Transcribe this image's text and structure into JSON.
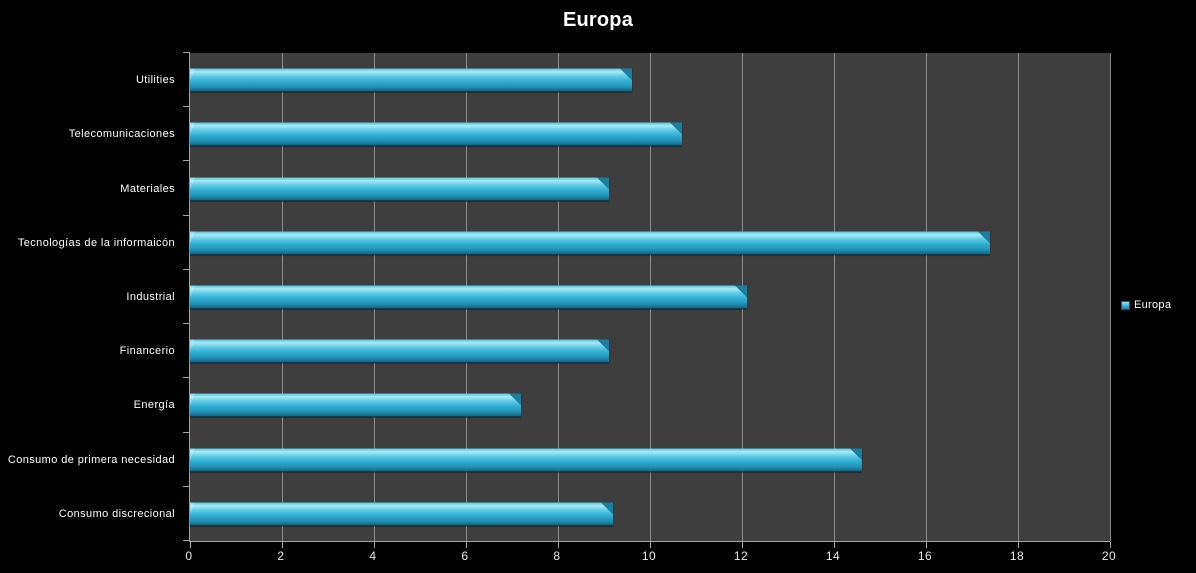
{
  "title": "Europa",
  "legend": {
    "label": "Europa",
    "position": "right"
  },
  "colors": {
    "background": "#000000",
    "plot_background": "#3e3e3e",
    "gridline": "#a3a3a3",
    "axis": "#a3a3a3",
    "text": "#ffffff",
    "bar_main": "#35b4d8",
    "bar_highlight": "#a9e9f5",
    "bar_shadow": "#0d5a75"
  },
  "chart_data": {
    "type": "bar",
    "orientation": "horizontal",
    "title": "Europa",
    "categories": [
      "Utilities",
      "Telecomunicaciones",
      "Materiales",
      "Tecnologías de la informaicón",
      "Industrial",
      "Financerio",
      "Energía",
      "Consumo de primera necesidad",
      "Consumo discrecional"
    ],
    "series": [
      {
        "name": "Europa",
        "values": [
          9.6,
          10.7,
          9.1,
          17.4,
          12.1,
          9.1,
          7.2,
          14.6,
          9.2
        ]
      }
    ],
    "xlabel": "",
    "ylabel": "",
    "xlim": [
      0,
      20
    ],
    "xticks": [
      0,
      2,
      4,
      6,
      8,
      10,
      12,
      14,
      16,
      18,
      20
    ],
    "grid": true,
    "legend_position": "right-center"
  }
}
